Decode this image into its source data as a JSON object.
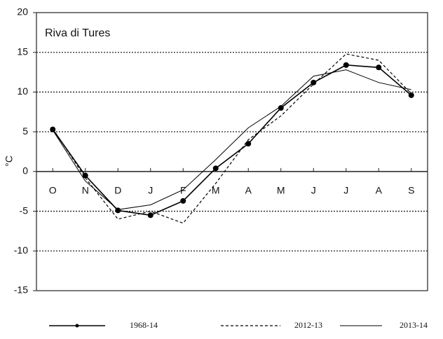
{
  "chart_data": {
    "type": "line",
    "annotation": "Riva di Tures",
    "y_label": "°C",
    "categories": [
      "O",
      "N",
      "D",
      "J",
      "F",
      "M",
      "A",
      "M",
      "J",
      "J",
      "A",
      "S"
    ],
    "series": [
      {
        "name": "1968-14",
        "color": "#000000",
        "style": "solid",
        "marker": "circle",
        "values": [
          5.3,
          -0.5,
          -4.9,
          -5.5,
          -3.7,
          0.4,
          3.5,
          8.0,
          11.2,
          13.4,
          13.1,
          9.6
        ]
      },
      {
        "name": "2012-13",
        "color": "#000000",
        "style": "dashed",
        "values": [
          5.4,
          -0.8,
          -6.0,
          -5.0,
          -6.5,
          -1.5,
          4.0,
          7.0,
          11.0,
          14.8,
          14.0,
          9.8
        ]
      },
      {
        "name": "2013-14",
        "color": "#000000",
        "style": "thin",
        "values": [
          5.2,
          -1.2,
          -4.8,
          -4.2,
          -2.3,
          1.5,
          5.5,
          8.2,
          12.0,
          12.8,
          11.2,
          10.3
        ]
      }
    ],
    "ylim": [
      -15,
      20
    ],
    "yticks": [
      -15,
      -10,
      -5,
      0,
      5,
      10,
      15,
      20
    ],
    "grid": true
  }
}
